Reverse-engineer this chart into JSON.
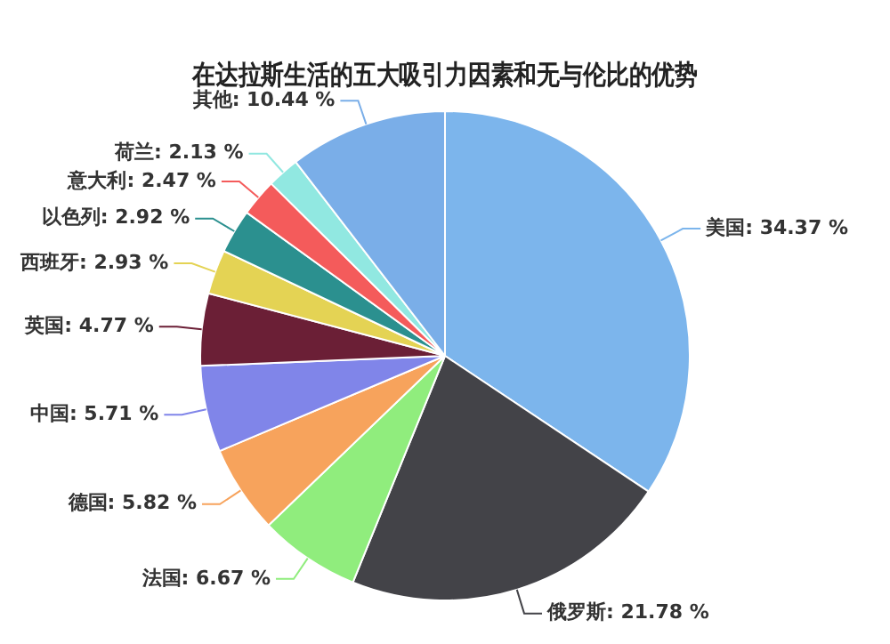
{
  "chart_data": {
    "type": "pie",
    "title": "在达拉斯生活的五大吸引力因素和无与伦比的优势",
    "categories": [
      "美国",
      "俄罗斯",
      "法国",
      "德国",
      "中国",
      "英国",
      "西班牙",
      "以色列",
      "意大利",
      "荷兰",
      "其他"
    ],
    "values": [
      34.37,
      21.78,
      6.67,
      5.82,
      5.71,
      4.77,
      2.93,
      2.92,
      2.47,
      2.13,
      10.44
    ],
    "value_labels": [
      "34.37 %",
      "21.78 %",
      "6.67 %",
      "5.82 %",
      "5.71 %",
      "4.77 %",
      "2.93 %",
      "2.92 %",
      "2.47 %",
      "2.13 %",
      "10.44 %"
    ],
    "colors": [
      "#7cb5ec",
      "#434348",
      "#90ed7d",
      "#f7a35c",
      "#8085e9",
      "#6b1f36",
      "#e4d354",
      "#2b908f",
      "#f45b5b",
      "#91e8e1",
      "#7aaee8"
    ],
    "legend": false
  }
}
